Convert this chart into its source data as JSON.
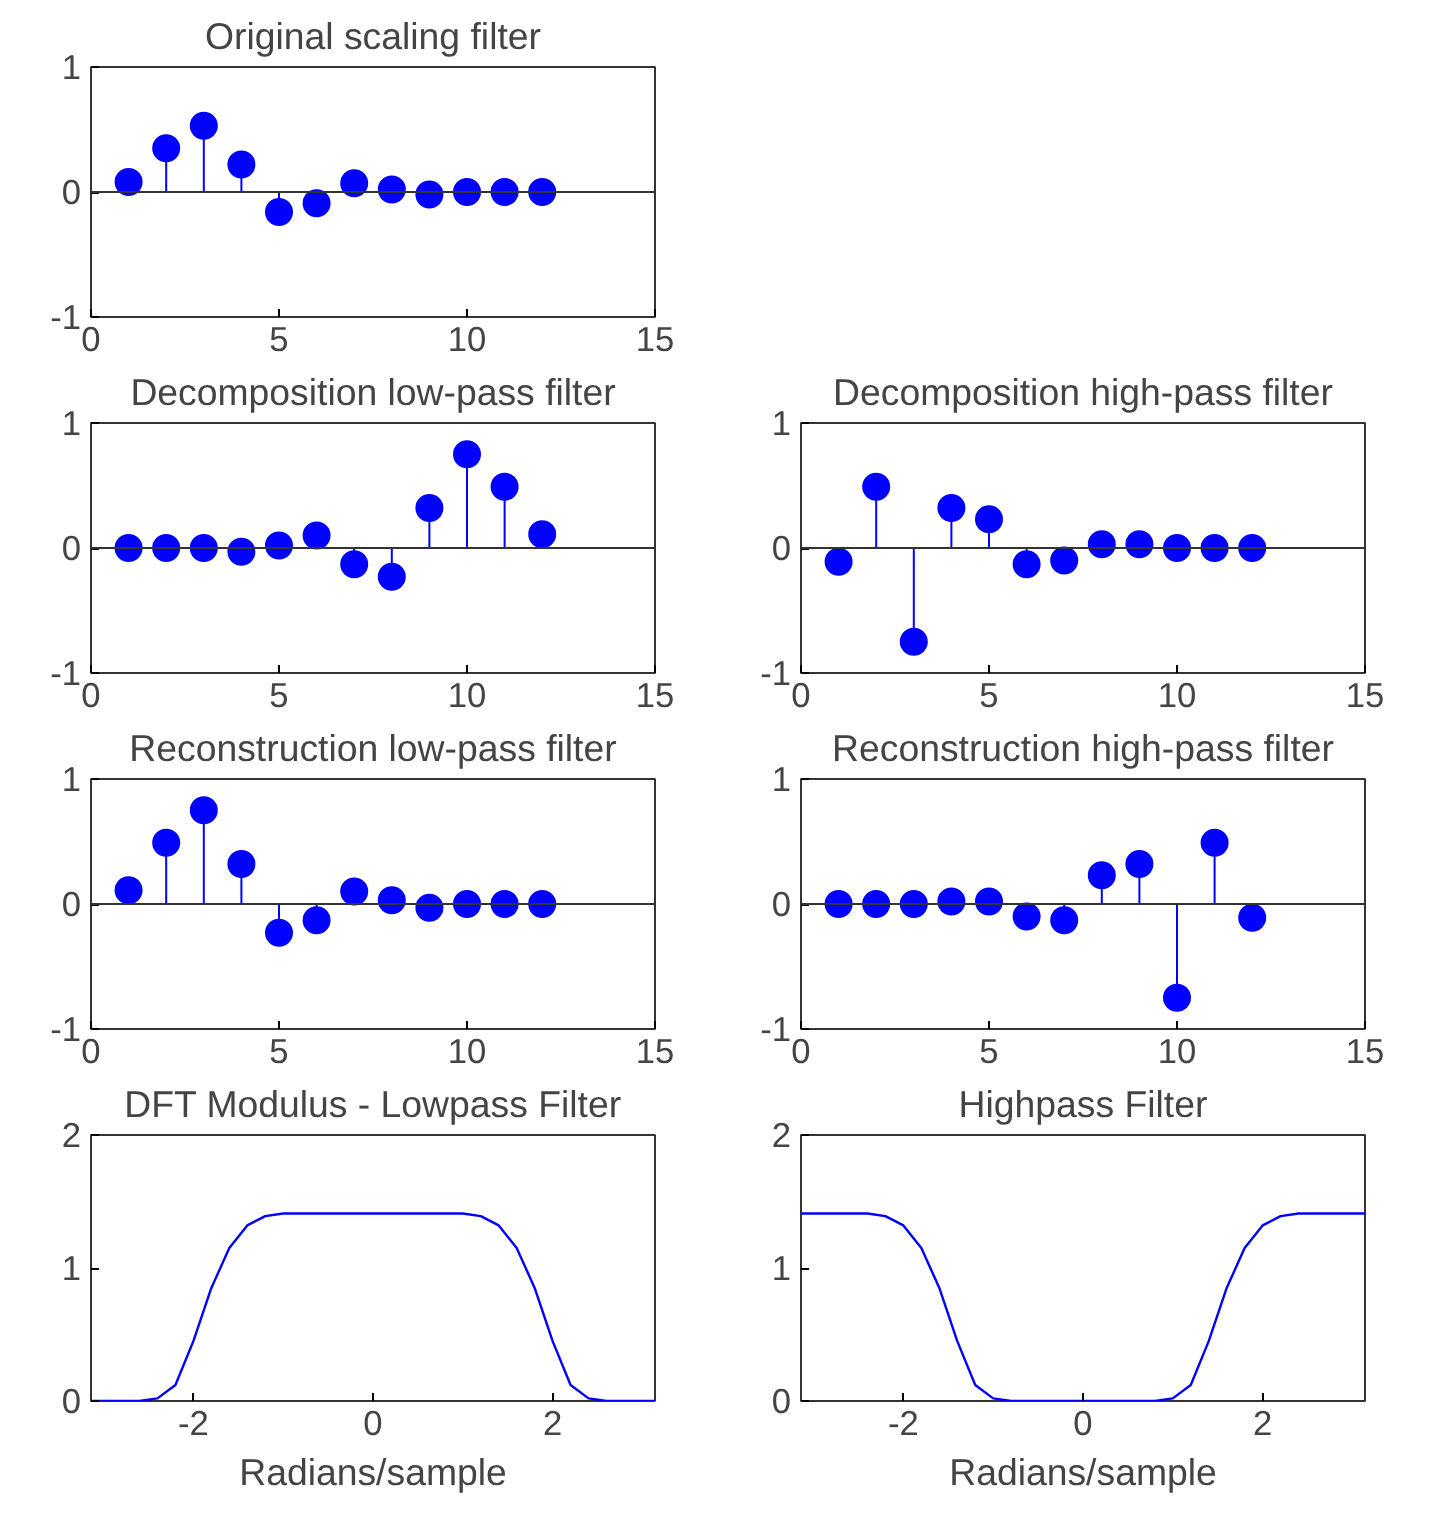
{
  "chart_data": [
    {
      "type": "lollipop",
      "title": "Original scaling filter",
      "x": [
        1,
        2,
        3,
        4,
        5,
        6,
        7,
        8,
        9,
        10,
        11,
        12
      ],
      "series": [
        {
          "color": "#0000ff",
          "values": [
            0.08,
            0.35,
            0.53,
            0.22,
            -0.16,
            -0.09,
            0.07,
            0.02,
            -0.02,
            0.0,
            0.0,
            0.0
          ]
        }
      ],
      "ref_lines": [
        {
          "axis": "y",
          "value": 0,
          "color": "#333333"
        }
      ],
      "xlim": [
        0,
        15
      ],
      "xticks": [
        0,
        5,
        10,
        15
      ],
      "ylim": [
        -1,
        1
      ],
      "yticks": [
        -1,
        0,
        1
      ],
      "marker": "circle",
      "grid": false
    },
    {
      "type": "lollipop",
      "title": "Decomposition low-pass filter",
      "x": [
        1,
        2,
        3,
        4,
        5,
        6,
        7,
        8,
        9,
        10,
        11,
        12
      ],
      "series": [
        {
          "color": "#0000ff",
          "values": [
            0.0,
            0.0,
            0.0,
            -0.03,
            0.02,
            0.1,
            -0.13,
            -0.23,
            0.32,
            0.75,
            0.49,
            0.11
          ]
        }
      ],
      "ref_lines": [
        {
          "axis": "y",
          "value": 0,
          "color": "#333333"
        }
      ],
      "xlim": [
        0,
        15
      ],
      "xticks": [
        0,
        5,
        10,
        15
      ],
      "ylim": [
        -1,
        1
      ],
      "yticks": [
        -1,
        0,
        1
      ],
      "marker": "circle",
      "grid": false
    },
    {
      "type": "lollipop",
      "title": "Decomposition high-pass filter",
      "x": [
        1,
        2,
        3,
        4,
        5,
        6,
        7,
        8,
        9,
        10,
        11,
        12
      ],
      "series": [
        {
          "color": "#0000ff",
          "values": [
            -0.11,
            0.49,
            -0.75,
            0.32,
            0.23,
            -0.13,
            -0.1,
            0.03,
            0.03,
            0.0,
            0.0,
            0.0
          ]
        }
      ],
      "ref_lines": [
        {
          "axis": "y",
          "value": 0,
          "color": "#333333"
        }
      ],
      "xlim": [
        0,
        15
      ],
      "xticks": [
        0,
        5,
        10,
        15
      ],
      "ylim": [
        -1,
        1
      ],
      "yticks": [
        -1,
        0,
        1
      ],
      "marker": "circle",
      "grid": false
    },
    {
      "type": "lollipop",
      "title": "Reconstruction low-pass filter",
      "x": [
        1,
        2,
        3,
        4,
        5,
        6,
        7,
        8,
        9,
        10,
        11,
        12
      ],
      "series": [
        {
          "color": "#0000ff",
          "values": [
            0.11,
            0.49,
            0.75,
            0.32,
            -0.23,
            -0.13,
            0.1,
            0.03,
            -0.03,
            0.0,
            0.0,
            0.0
          ]
        }
      ],
      "ref_lines": [
        {
          "axis": "y",
          "value": 0,
          "color": "#333333"
        }
      ],
      "xlim": [
        0,
        15
      ],
      "xticks": [
        0,
        5,
        10,
        15
      ],
      "ylim": [
        -1,
        1
      ],
      "yticks": [
        -1,
        0,
        1
      ],
      "marker": "circle",
      "grid": false
    },
    {
      "type": "lollipop",
      "title": "Reconstruction high-pass filter",
      "x": [
        1,
        2,
        3,
        4,
        5,
        6,
        7,
        8,
        9,
        10,
        11,
        12
      ],
      "series": [
        {
          "color": "#0000ff",
          "values": [
            0.0,
            0.0,
            0.0,
            0.02,
            0.02,
            -0.1,
            -0.13,
            0.23,
            0.32,
            -0.75,
            0.49,
            -0.11
          ]
        }
      ],
      "ref_lines": [
        {
          "axis": "y",
          "value": 0,
          "color": "#333333"
        }
      ],
      "xlim": [
        0,
        15
      ],
      "xticks": [
        0,
        5,
        10,
        15
      ],
      "ylim": [
        -1,
        1
      ],
      "yticks": [
        -1,
        0,
        1
      ],
      "marker": "circle",
      "grid": false
    },
    {
      "type": "line",
      "title": "DFT Modulus - Lowpass Filter",
      "xlabel": "Radians/sample",
      "x": [
        -3.14,
        -2.6,
        -2.4,
        -2.2,
        -2.0,
        -1.8,
        -1.6,
        -1.4,
        -1.2,
        -1.0,
        -0.8,
        0,
        0.8,
        1.0,
        1.2,
        1.4,
        1.6,
        1.8,
        2.0,
        2.2,
        2.4,
        2.6,
        3.14
      ],
      "series": [
        {
          "color": "#0000ff",
          "values": [
            0,
            0,
            0.02,
            0.12,
            0.45,
            0.85,
            1.15,
            1.32,
            1.39,
            1.41,
            1.41,
            1.41,
            1.41,
            1.41,
            1.39,
            1.32,
            1.15,
            0.85,
            0.45,
            0.12,
            0.02,
            0,
            0
          ]
        }
      ],
      "xlim": [
        -3.14,
        3.14
      ],
      "xticks": [
        -2,
        0,
        2
      ],
      "ylim": [
        0,
        2
      ],
      "yticks": [
        0,
        1,
        2
      ],
      "marker": "none",
      "grid": false
    },
    {
      "type": "line",
      "title": "Highpass Filter",
      "xlabel": "Radians/sample",
      "x": [
        -3.14,
        -2.4,
        -2.2,
        -2.0,
        -1.8,
        -1.6,
        -1.4,
        -1.2,
        -1.0,
        -0.8,
        -0.6,
        0,
        0.6,
        0.8,
        1.0,
        1.2,
        1.4,
        1.6,
        1.8,
        2.0,
        2.2,
        2.4,
        3.14
      ],
      "series": [
        {
          "color": "#0000ff",
          "values": [
            1.41,
            1.41,
            1.39,
            1.32,
            1.15,
            0.85,
            0.45,
            0.12,
            0.02,
            0,
            0,
            0,
            0,
            0,
            0.02,
            0.12,
            0.45,
            0.85,
            1.15,
            1.32,
            1.39,
            1.41,
            1.41
          ]
        }
      ],
      "xlim": [
        -3.14,
        3.14
      ],
      "xticks": [
        -2,
        0,
        2
      ],
      "ylim": [
        0,
        2
      ],
      "yticks": [
        0,
        1,
        2
      ],
      "marker": "none",
      "grid": false
    }
  ]
}
